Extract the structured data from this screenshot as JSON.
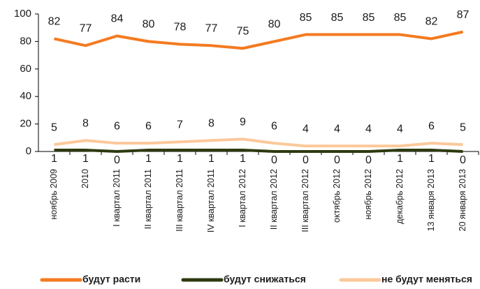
{
  "chart_data": {
    "type": "line",
    "categories": [
      "ноябрь 2009",
      "2010",
      "I квартал 2011",
      "II квартал 2011",
      "III квартал 2011",
      "IV квартал 2011",
      "I квартал 2012",
      "II квартал 2012",
      "III квартал 2012",
      "октябрь 2012",
      "ноябрь 2012",
      "декабрь 2012",
      "13 января 2013",
      "20 января 2013"
    ],
    "series": [
      {
        "name": "будут расти",
        "color": "#f47a20",
        "values": [
          82,
          77,
          84,
          80,
          78,
          77,
          75,
          80,
          85,
          85,
          85,
          85,
          82,
          87
        ]
      },
      {
        "name": "будут снижаться",
        "color": "#2d3a10",
        "values": [
          1,
          1,
          0,
          1,
          1,
          1,
          1,
          0,
          0,
          0,
          0,
          1,
          1,
          0
        ]
      },
      {
        "name": "не будут меняться",
        "color": "#fcc89a",
        "values": [
          5,
          8,
          6,
          6,
          7,
          8,
          9,
          6,
          4,
          4,
          4,
          4,
          6,
          5
        ]
      }
    ],
    "ylim": [
      0,
      100
    ],
    "yticks": [
      0,
      20,
      40,
      60,
      80,
      100
    ],
    "grid": false,
    "legend": "bottom"
  }
}
